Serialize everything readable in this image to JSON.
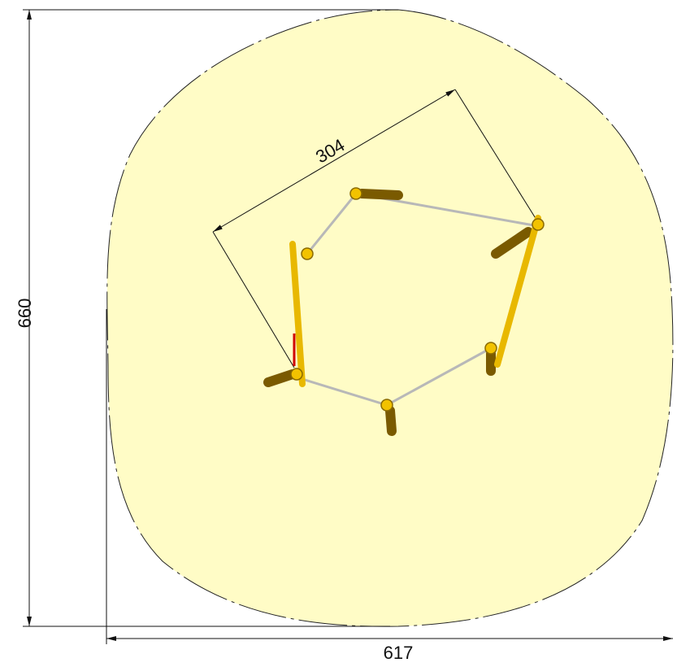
{
  "dimensions": {
    "height": 660,
    "width": 617,
    "spacing": 304
  }
}
